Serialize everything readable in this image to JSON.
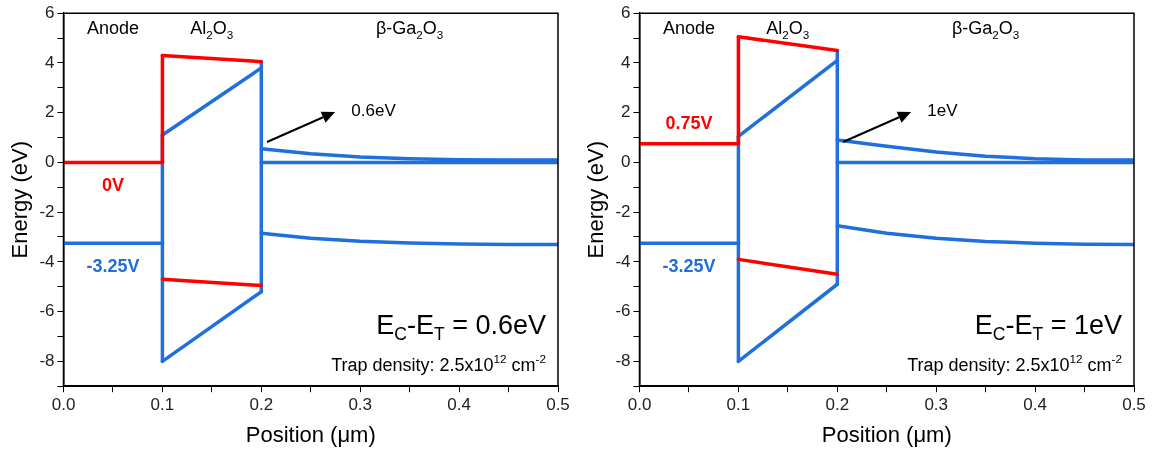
{
  "chart_data": [
    {
      "type": "line",
      "xlabel": "Position (μm)",
      "ylabel": "Energy (eV)",
      "xlim": [
        0,
        0.5
      ],
      "ylim": [
        -9,
        6
      ],
      "xticks": [
        {
          "value": 0,
          "label": "0.0"
        },
        {
          "value": 0.05,
          "label": null
        },
        {
          "value": 0.1,
          "label": "0.1"
        },
        {
          "value": 0.15,
          "label": null
        },
        {
          "value": 0.2,
          "label": "0.2"
        },
        {
          "value": 0.25,
          "label": null
        },
        {
          "value": 0.3,
          "label": "0.3"
        },
        {
          "value": 0.35,
          "label": null
        },
        {
          "value": 0.4,
          "label": "0.4"
        },
        {
          "value": 0.45,
          "label": null
        },
        {
          "value": 0.5,
          "label": "0.5"
        }
      ],
      "yticks": [
        {
          "value": -9,
          "label": null
        },
        -8,
        {
          "value": -7,
          "label": null
        },
        -6,
        {
          "value": -5,
          "label": null
        },
        -4,
        {
          "value": -3,
          "label": null
        },
        -2,
        {
          "value": -1,
          "label": null
        },
        0,
        {
          "value": 1,
          "label": null
        },
        2,
        {
          "value": 3,
          "label": null
        },
        4,
        {
          "value": 5,
          "label": null
        },
        6
      ],
      "grid": false,
      "marker": "none",
      "series": [
        {
          "name": "0V",
          "color": "#ff0000",
          "x": [
            0,
            0.1
          ],
          "values": [
            0,
            0
          ]
        },
        {
          "color": "#ff0000",
          "x": [
            0.1,
            0.1
          ],
          "values": [
            0,
            4.3
          ]
        },
        {
          "color": "#ff0000",
          "x": [
            0.1,
            0.2
          ],
          "values": [
            4.3,
            4.05
          ]
        },
        {
          "color": "#ff0000",
          "x": [
            0.1,
            0.2
          ],
          "values": [
            -4.7,
            -4.95
          ]
        },
        {
          "name": "-3.25V",
          "color": "#1f6fdc",
          "x": [
            0,
            0.1
          ],
          "values": [
            -3.25,
            -3.25
          ]
        },
        {
          "color": "#1f6fdc",
          "x": [
            0.1,
            0.1
          ],
          "values": [
            -8,
            1.1
          ]
        },
        {
          "color": "#1f6fdc",
          "x": [
            0.1,
            0.2
          ],
          "values": [
            1.1,
            3.8
          ]
        },
        {
          "color": "#1f6fdc",
          "x": [
            0.2,
            0.2
          ],
          "values": [
            -5.2,
            4.05
          ]
        },
        {
          "color": "#1f6fdc",
          "x": [
            0.1,
            0.2
          ],
          "values": [
            -8,
            -5.2
          ]
        },
        {
          "color": "#1f6fdc",
          "x": [
            0.2,
            0.25,
            0.3,
            0.35,
            0.4,
            0.45,
            0.5
          ],
          "values": [
            0.55,
            0.35,
            0.22,
            0.15,
            0.11,
            0.1,
            0.1
          ]
        },
        {
          "color": "#1f6fdc",
          "x": [
            0.2,
            0.5
          ],
          "values": [
            0,
            0
          ]
        },
        {
          "color": "#1f6fdc",
          "x": [
            0.2,
            0.25,
            0.3,
            0.35,
            0.4,
            0.45,
            0.5
          ],
          "values": [
            -2.85,
            -3.05,
            -3.17,
            -3.24,
            -3.28,
            -3.3,
            -3.3
          ]
        }
      ],
      "annotations": [
        "Anode",
        "Al$_{2}$O$_{3}$",
        "β-Ga$_{2}$O$_{3}$",
        "0.6eV",
        "E$_{C}$-E$_{T}$ = 0.6eV",
        "Trap density: 2.5x10$^{12}$ cm$^{-2}$"
      ]
    },
    {
      "type": "line",
      "xlabel": "Position (μm)",
      "ylabel": "Energy (eV)",
      "xlim": [
        0,
        0.5
      ],
      "ylim": [
        -9,
        6
      ],
      "xticks": [
        {
          "value": 0,
          "label": "0.0"
        },
        {
          "value": 0.05,
          "label": null
        },
        {
          "value": 0.1,
          "label": "0.1"
        },
        {
          "value": 0.15,
          "label": null
        },
        {
          "value": 0.2,
          "label": "0.2"
        },
        {
          "value": 0.25,
          "label": null
        },
        {
          "value": 0.3,
          "label": "0.3"
        },
        {
          "value": 0.35,
          "label": null
        },
        {
          "value": 0.4,
          "label": "0.4"
        },
        {
          "value": 0.45,
          "label": null
        },
        {
          "value": 0.5,
          "label": "0.5"
        }
      ],
      "yticks": [
        {
          "value": -9,
          "label": null
        },
        -8,
        {
          "value": -7,
          "label": null
        },
        -6,
        {
          "value": -5,
          "label": null
        },
        -4,
        {
          "value": -3,
          "label": null
        },
        -2,
        {
          "value": -1,
          "label": null
        },
        0,
        {
          "value": 1,
          "label": null
        },
        2,
        {
          "value": 3,
          "label": null
        },
        4,
        {
          "value": 5,
          "label": null
        },
        6
      ],
      "grid": false,
      "marker": "none",
      "series": [
        {
          "name": "0.75V",
          "color": "#ff0000",
          "x": [
            0,
            0.1
          ],
          "values": [
            0.75,
            0.75
          ]
        },
        {
          "color": "#ff0000",
          "x": [
            0.1,
            0.1
          ],
          "values": [
            0.75,
            5.05
          ]
        },
        {
          "color": "#ff0000",
          "x": [
            0.1,
            0.2
          ],
          "values": [
            5.05,
            4.5
          ]
        },
        {
          "color": "#ff0000",
          "x": [
            0.1,
            0.2
          ],
          "values": [
            -3.9,
            -4.5
          ]
        },
        {
          "name": "-3.25V",
          "color": "#1f6fdc",
          "x": [
            0,
            0.1
          ],
          "values": [
            -3.25,
            -3.25
          ]
        },
        {
          "color": "#1f6fdc",
          "x": [
            0.1,
            0.1
          ],
          "values": [
            -8,
            1.05
          ]
        },
        {
          "color": "#1f6fdc",
          "x": [
            0.1,
            0.2
          ],
          "values": [
            1.05,
            4.1
          ]
        },
        {
          "color": "#1f6fdc",
          "x": [
            0.2,
            0.2
          ],
          "values": [
            -4.9,
            4.5
          ]
        },
        {
          "color": "#1f6fdc",
          "x": [
            0.1,
            0.2
          ],
          "values": [
            -8,
            -4.9
          ]
        },
        {
          "color": "#1f6fdc",
          "x": [
            0.2,
            0.25,
            0.3,
            0.35,
            0.4,
            0.45,
            0.5
          ],
          "values": [
            0.9,
            0.65,
            0.42,
            0.25,
            0.15,
            0.1,
            0.1
          ]
        },
        {
          "color": "#1f6fdc",
          "x": [
            0.2,
            0.5
          ],
          "values": [
            0,
            0
          ]
        },
        {
          "color": "#1f6fdc",
          "x": [
            0.2,
            0.25,
            0.3,
            0.35,
            0.4,
            0.45,
            0.5
          ],
          "values": [
            -2.55,
            -2.85,
            -3.05,
            -3.18,
            -3.25,
            -3.29,
            -3.3
          ]
        }
      ],
      "annotations": [
        "Anode",
        "Al$_{2}$O$_{3}$",
        "β-Ga$_{2}$O$_{3}$",
        "1eV",
        "E$_{C}$-E$_{T}$ = 1eV",
        "Trap density: 2.5x10$^{12}$ cm$^{-2}$"
      ]
    }
  ]
}
